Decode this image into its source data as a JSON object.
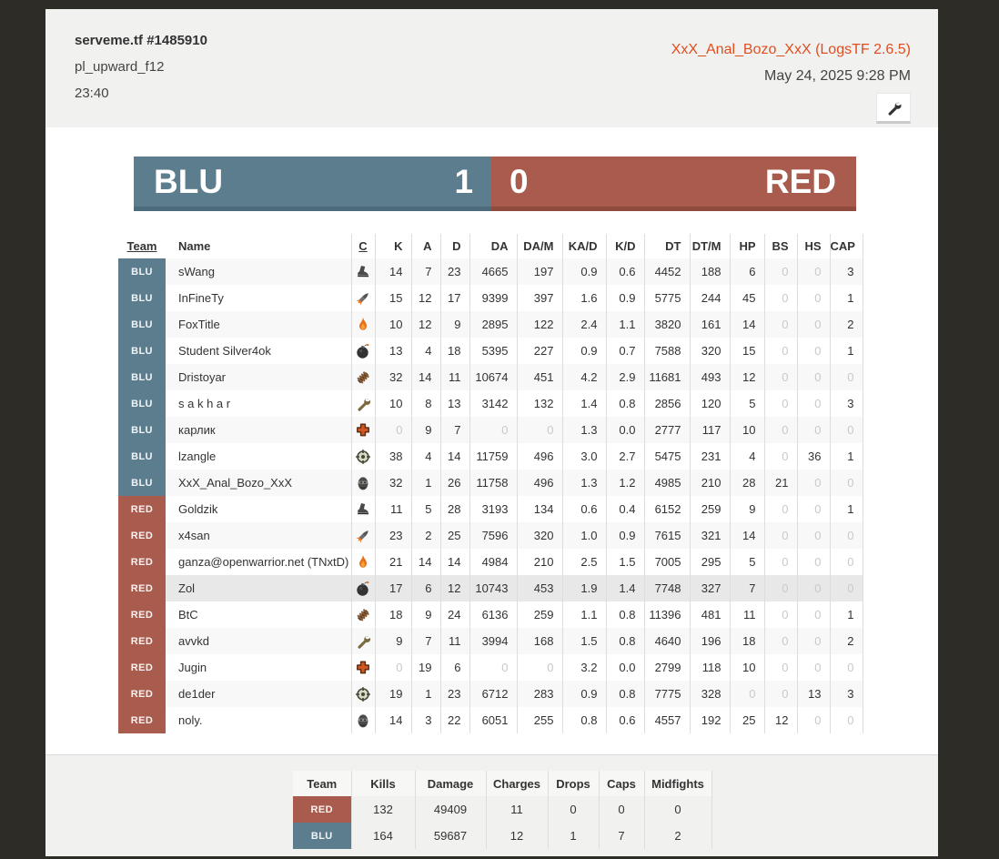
{
  "header": {
    "server_title": "serveme.tf #1485910",
    "map_name": "pl_upward_f12",
    "duration": "23:40",
    "log_title": "XxX_Anal_Bozo_XxX (LogsTF 2.6.5)",
    "date": "May 24, 2025 9:28 PM"
  },
  "scoreboard": {
    "blu": {
      "label": "BLU",
      "score": "1",
      "color": "#5b7d8e"
    },
    "red": {
      "label": "RED",
      "score": "0",
      "color": "#a95c4e"
    }
  },
  "players_table": {
    "columns": [
      "Team",
      "Name",
      "C",
      "K",
      "A",
      "D",
      "DA",
      "DA/M",
      "KA/D",
      "K/D",
      "DT",
      "DT/M",
      "HP",
      "BS",
      "HS",
      "CAP"
    ],
    "sortable_underlined": [
      "Team",
      "C"
    ],
    "rows": [
      {
        "team": "BLU",
        "name": "sWang",
        "class": "scout",
        "stats": [
          "14",
          "7",
          "23",
          "4665",
          "197",
          "0.9",
          "0.6",
          "4452",
          "188",
          "6",
          "0",
          "0",
          "3"
        ],
        "highlighted": false
      },
      {
        "team": "BLU",
        "name": "InFineTy",
        "class": "soldier",
        "stats": [
          "15",
          "12",
          "17",
          "9399",
          "397",
          "1.6",
          "0.9",
          "5775",
          "244",
          "45",
          "0",
          "0",
          "1"
        ],
        "highlighted": false
      },
      {
        "team": "BLU",
        "name": "FoxTitle",
        "class": "pyro",
        "stats": [
          "10",
          "12",
          "9",
          "2895",
          "122",
          "2.4",
          "1.1",
          "3820",
          "161",
          "14",
          "0",
          "0",
          "2"
        ],
        "highlighted": false
      },
      {
        "team": "BLU",
        "name": "Student Silver4ok",
        "class": "demoman",
        "stats": [
          "13",
          "4",
          "18",
          "5395",
          "227",
          "0.9",
          "0.7",
          "7588",
          "320",
          "15",
          "0",
          "0",
          "1"
        ],
        "highlighted": false
      },
      {
        "team": "BLU",
        "name": "Dristoyar",
        "class": "heavy",
        "stats": [
          "32",
          "14",
          "11",
          "10674",
          "451",
          "4.2",
          "2.9",
          "11681",
          "493",
          "12",
          "0",
          "0",
          "0"
        ],
        "highlighted": false
      },
      {
        "team": "BLU",
        "name": "s a k h a r",
        "class": "engineer",
        "stats": [
          "10",
          "8",
          "13",
          "3142",
          "132",
          "1.4",
          "0.8",
          "2856",
          "120",
          "5",
          "0",
          "0",
          "3"
        ],
        "highlighted": false
      },
      {
        "team": "BLU",
        "name": "карлик",
        "class": "medic",
        "stats": [
          "0",
          "9",
          "7",
          "0",
          "0",
          "1.3",
          "0.0",
          "2777",
          "117",
          "10",
          "0",
          "0",
          "0"
        ],
        "highlighted": false
      },
      {
        "team": "BLU",
        "name": "lzangle",
        "class": "sniper",
        "stats": [
          "38",
          "4",
          "14",
          "11759",
          "496",
          "3.0",
          "2.7",
          "5475",
          "231",
          "4",
          "0",
          "36",
          "1"
        ],
        "highlighted": false
      },
      {
        "team": "BLU",
        "name": "XxX_Anal_Bozo_XxX",
        "class": "spy",
        "stats": [
          "32",
          "1",
          "26",
          "11758",
          "496",
          "1.3",
          "1.2",
          "4985",
          "210",
          "28",
          "21",
          "0",
          "0"
        ],
        "highlighted": false
      },
      {
        "team": "RED",
        "name": "Goldzik",
        "class": "scout",
        "stats": [
          "11",
          "5",
          "28",
          "3193",
          "134",
          "0.6",
          "0.4",
          "6152",
          "259",
          "9",
          "0",
          "0",
          "1"
        ],
        "highlighted": false
      },
      {
        "team": "RED",
        "name": "x4san",
        "class": "soldier",
        "stats": [
          "23",
          "2",
          "25",
          "7596",
          "320",
          "1.0",
          "0.9",
          "7615",
          "321",
          "14",
          "0",
          "0",
          "0"
        ],
        "highlighted": false
      },
      {
        "team": "RED",
        "name": "ganza@openwarrior.net (TNxtD)",
        "class": "pyro",
        "stats": [
          "21",
          "14",
          "14",
          "4984",
          "210",
          "2.5",
          "1.5",
          "7005",
          "295",
          "5",
          "0",
          "0",
          "0"
        ],
        "highlighted": false
      },
      {
        "team": "RED",
        "name": "Zol",
        "class": "demoman",
        "stats": [
          "17",
          "6",
          "12",
          "10743",
          "453",
          "1.9",
          "1.4",
          "7748",
          "327",
          "7",
          "0",
          "0",
          "0"
        ],
        "highlighted": true
      },
      {
        "team": "RED",
        "name": "BtC",
        "class": "heavy",
        "stats": [
          "18",
          "9",
          "24",
          "6136",
          "259",
          "1.1",
          "0.8",
          "11396",
          "481",
          "11",
          "0",
          "0",
          "1"
        ],
        "highlighted": false
      },
      {
        "team": "RED",
        "name": "avvkd",
        "class": "engineer",
        "stats": [
          "9",
          "7",
          "11",
          "3994",
          "168",
          "1.5",
          "0.8",
          "4640",
          "196",
          "18",
          "0",
          "0",
          "2"
        ],
        "highlighted": false
      },
      {
        "team": "RED",
        "name": "Jugin",
        "class": "medic",
        "stats": [
          "0",
          "19",
          "6",
          "0",
          "0",
          "3.2",
          "0.0",
          "2799",
          "118",
          "10",
          "0",
          "0",
          "0"
        ],
        "highlighted": false
      },
      {
        "team": "RED",
        "name": "de1der",
        "class": "sniper",
        "stats": [
          "19",
          "1",
          "23",
          "6712",
          "283",
          "0.9",
          "0.8",
          "7775",
          "328",
          "0",
          "0",
          "13",
          "3"
        ],
        "highlighted": false
      },
      {
        "team": "RED",
        "name": "noly.",
        "class": "spy",
        "stats": [
          "14",
          "3",
          "22",
          "6051",
          "255",
          "0.8",
          "0.6",
          "4557",
          "192",
          "25",
          "12",
          "0",
          "0"
        ],
        "highlighted": false
      }
    ]
  },
  "summary_table": {
    "columns": [
      "Team",
      "Kills",
      "Damage",
      "Charges",
      "Drops",
      "Caps",
      "Midfights"
    ],
    "rows": [
      {
        "team": "RED",
        "values": [
          "132",
          "49409",
          "11",
          "0",
          "0",
          "0"
        ]
      },
      {
        "team": "BLU",
        "values": [
          "164",
          "59687",
          "12",
          "1",
          "7",
          "2"
        ]
      }
    ]
  },
  "colors": {
    "blu": "#5b7d8e",
    "red": "#a95c4e",
    "accent_link": "#e04e1f",
    "page_bg": "#2e2c27",
    "section_bg": "#f1f1f0",
    "muted_zero": "#c9c9c9"
  }
}
